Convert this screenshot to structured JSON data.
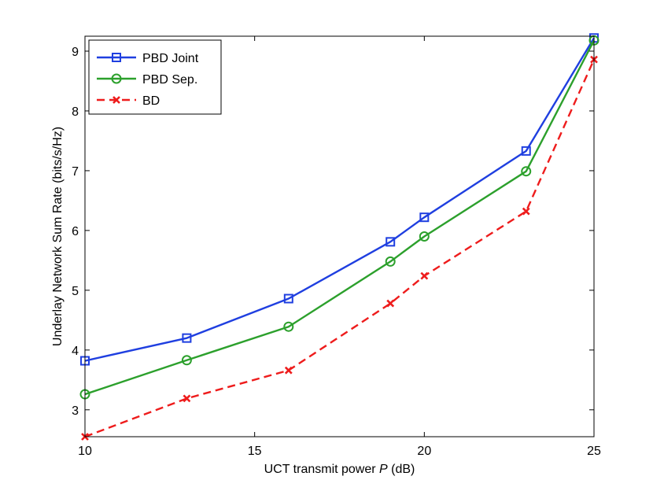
{
  "chart_data": {
    "type": "line",
    "title": "",
    "xlabel_prefix": "UCT transmit power ",
    "xlabel_var": "P",
    "xlabel_suffix": " (dB)",
    "ylabel": "Underlay Network Sum Rate (bits/s/Hz)",
    "xlim": [
      10,
      25
    ],
    "ylim": [
      2.55,
      9.25
    ],
    "xticks": [
      10,
      15,
      20,
      25
    ],
    "yticks": [
      3,
      4,
      5,
      6,
      7,
      8,
      9
    ],
    "grid": false,
    "legend_position": "top-left",
    "series": [
      {
        "name": "PBD Joint",
        "color": "#1f3fe0",
        "line_style": "solid",
        "marker": "square",
        "x": [
          10,
          13,
          16,
          19,
          20,
          23,
          25
        ],
        "y": [
          3.82,
          4.2,
          4.86,
          5.81,
          6.22,
          7.33,
          9.22
        ]
      },
      {
        "name": "PBD Sep.",
        "color": "#2ca02c",
        "line_style": "solid",
        "marker": "circle",
        "x": [
          10,
          13,
          16,
          19,
          20,
          23,
          25
        ],
        "y": [
          3.26,
          3.83,
          4.39,
          5.48,
          5.9,
          6.99,
          9.18
        ]
      },
      {
        "name": "BD",
        "color": "#ee1c1c",
        "line_style": "dashed",
        "marker": "x",
        "x": [
          10,
          13,
          16,
          19,
          20,
          23,
          25
        ],
        "y": [
          2.55,
          3.19,
          3.66,
          4.78,
          5.24,
          6.32,
          8.86
        ]
      }
    ]
  }
}
